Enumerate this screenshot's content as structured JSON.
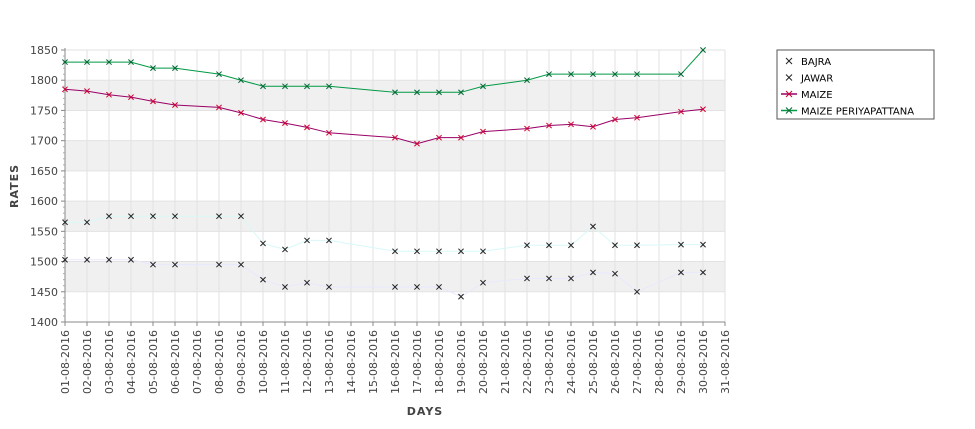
{
  "chart_data": {
    "type": "line",
    "xlabel": "DAYS",
    "ylabel": "RATES",
    "ylim": [
      1400,
      1850
    ],
    "yticks": [
      1400,
      1450,
      1500,
      1550,
      1600,
      1650,
      1700,
      1750,
      1800,
      1850
    ],
    "categories": [
      "01-08-2016",
      "02-08-2016",
      "03-08-2016",
      "04-08-2016",
      "05-08-2016",
      "06-08-2016",
      "07-08-2016",
      "08-08-2016",
      "09-08-2016",
      "10-08-2016",
      "11-08-2016",
      "12-08-2016",
      "13-08-2016",
      "14-08-2016",
      "15-08-2016",
      "16-08-2016",
      "17-08-2016",
      "18-08-2016",
      "19-08-2016",
      "20-08-2016",
      "21-08-2016",
      "22-08-2016",
      "23-08-2016",
      "24-08-2016",
      "25-08-2016",
      "26-08-2016",
      "27-08-2016",
      "28-08-2016",
      "29-08-2016",
      "30-08-2016",
      "31-08-2016"
    ],
    "legend_position": "top-right",
    "banded_background": true,
    "series": [
      {
        "name": "BAJRA",
        "color": "#e8e8ff",
        "marker_color": "#222222",
        "values": [
          1503,
          1503,
          1503,
          1503,
          1495,
          1495,
          null,
          1495,
          1495,
          1470,
          1458,
          1465,
          1458,
          null,
          null,
          1458,
          1458,
          1458,
          1442,
          1465,
          null,
          1472,
          1472,
          1472,
          1482,
          1480,
          1450,
          null,
          1482,
          1482,
          null
        ]
      },
      {
        "name": "JAWAR",
        "color": "#d8f8f8",
        "marker_color": "#222222",
        "values": [
          1565,
          1565,
          1575,
          1575,
          1575,
          1575,
          null,
          1575,
          1575,
          1530,
          1520,
          1535,
          1535,
          null,
          null,
          1517,
          1517,
          1517,
          1517,
          1517,
          null,
          1527,
          1527,
          1527,
          1558,
          1527,
          1527,
          null,
          1528,
          1528,
          null
        ]
      },
      {
        "name": "MAIZE",
        "color": "#990066",
        "marker_color": "#cc0033",
        "values": [
          1785,
          1782,
          1776,
          1772,
          1765,
          1759,
          null,
          1755,
          1746,
          1735,
          1729,
          1722,
          1713,
          null,
          null,
          1705,
          1695,
          1705,
          1705,
          1715,
          null,
          1720,
          1725,
          1727,
          1723,
          1735,
          1738,
          null,
          1748,
          1752,
          null
        ]
      },
      {
        "name": "MAIZE PERIYAPATTANA",
        "color": "#009944",
        "marker_color": "#006633",
        "values": [
          1830,
          1830,
          1830,
          1830,
          1820,
          1820,
          null,
          1810,
          1800,
          1790,
          1790,
          1790,
          1790,
          null,
          null,
          1780,
          1780,
          1780,
          1780,
          1790,
          null,
          1800,
          1810,
          1810,
          1810,
          1810,
          1810,
          null,
          1810,
          1850,
          null
        ]
      }
    ]
  }
}
